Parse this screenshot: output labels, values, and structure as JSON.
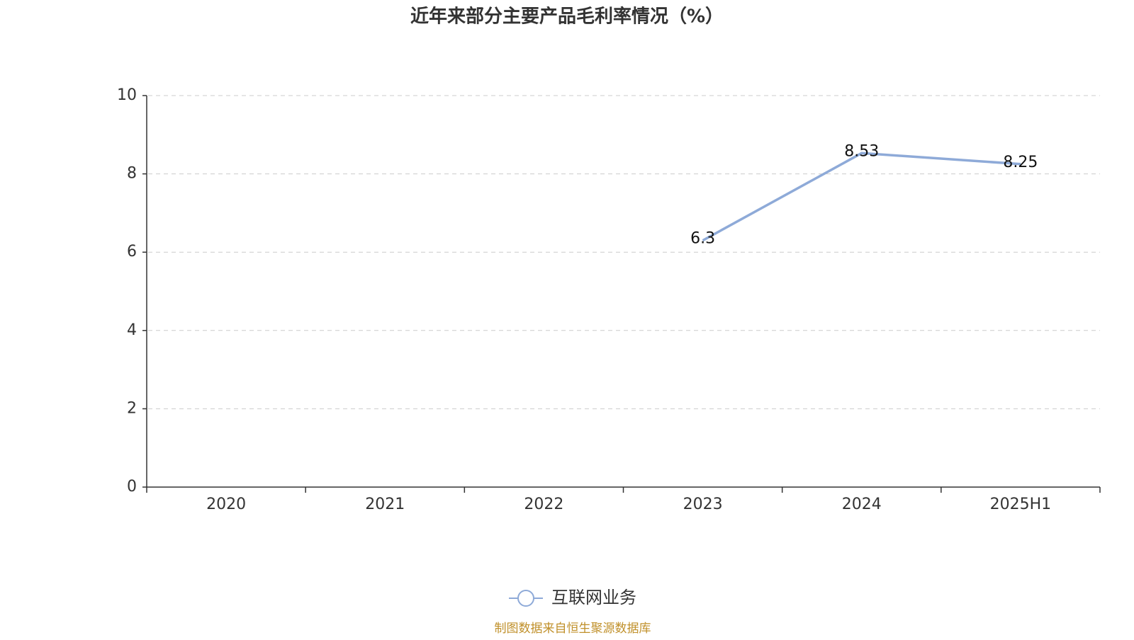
{
  "chart_data": {
    "type": "line",
    "title": "近年来部分主要产品毛利率情况（%）",
    "categories": [
      "2020",
      "2021",
      "2022",
      "2023",
      "2024",
      "2025H1"
    ],
    "series": [
      {
        "name": "互联网业务",
        "color": "#8eaad8",
        "values": [
          null,
          null,
          null,
          6.3,
          8.53,
          8.25
        ]
      }
    ],
    "ylim": [
      0,
      10
    ],
    "yticks": [
      0,
      2,
      4,
      6,
      8,
      10
    ],
    "grid": true,
    "legend": "bottom",
    "source": "制图数据来自恒生聚源数据库"
  }
}
